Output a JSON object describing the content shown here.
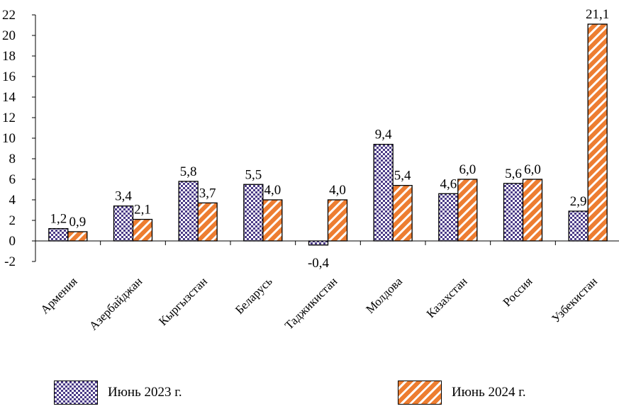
{
  "chart_data": {
    "type": "bar",
    "title": "",
    "xlabel": "",
    "ylabel": "",
    "categories": [
      "Армения",
      "Азербайджан",
      "Кыргызстан",
      "Беларусь",
      "Таджикистан",
      "Молдова",
      "Казахстан",
      "Россия",
      "Узбекистан"
    ],
    "series": [
      {
        "name": "Июнь 2023 г.",
        "values": [
          1.2,
          3.4,
          5.8,
          5.5,
          -0.4,
          9.4,
          4.6,
          5.6,
          2.9
        ],
        "labels": [
          "1,2",
          "3,4",
          "5,8",
          "5,5",
          "-0,4",
          "9,4",
          "4,6",
          "5,6",
          "2,9"
        ],
        "color": "#4b3b87",
        "pattern": "checker"
      },
      {
        "name": "Июнь 2024 г.",
        "values": [
          0.9,
          2.1,
          3.7,
          4.0,
          4.0,
          5.4,
          6.0,
          6.0,
          21.1
        ],
        "labels": [
          "0,9",
          "2,1",
          "3,7",
          "4,0",
          "4,0",
          "5,4",
          "6,0",
          "6,0",
          "21,1"
        ],
        "color": "#ed7d31",
        "pattern": "diagonal-stripes"
      }
    ],
    "ylim": [
      -2,
      22
    ],
    "yticks": [
      -2,
      0,
      2,
      4,
      6,
      8,
      10,
      12,
      14,
      16,
      18,
      20,
      22
    ],
    "grid": false,
    "legend": "bottom"
  }
}
